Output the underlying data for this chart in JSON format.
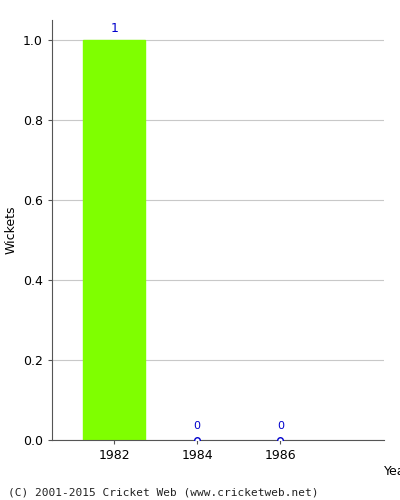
{
  "bar_year": 1982,
  "bar_value": 1,
  "bar_color": "#7FFF00",
  "bar_width": 1.5,
  "zero_years": [
    1984,
    1986
  ],
  "zero_values": [
    0,
    0
  ],
  "ylabel": "Wickets",
  "xlabel": "Year",
  "ylim": [
    0.0,
    1.05
  ],
  "xlim": [
    1980.5,
    1988.5
  ],
  "xticks": [
    1982,
    1984,
    1986
  ],
  "yticks": [
    0.0,
    0.2,
    0.4,
    0.6,
    0.8,
    1.0
  ],
  "bar_label_color": "#0000CC",
  "bar_label_fontsize": 9,
  "zero_marker_color": "#0000CC",
  "zero_label_color": "#0000CC",
  "zero_label_fontsize": 8,
  "footer_text": "(C) 2001-2015 Cricket Web (www.cricketweb.net)",
  "footer_fontsize": 8,
  "grid_color": "#c8c8c8",
  "axis_bg_color": "#ffffff",
  "fig_bg_color": "#ffffff",
  "tick_color": "#555555",
  "spine_color": "#555555"
}
